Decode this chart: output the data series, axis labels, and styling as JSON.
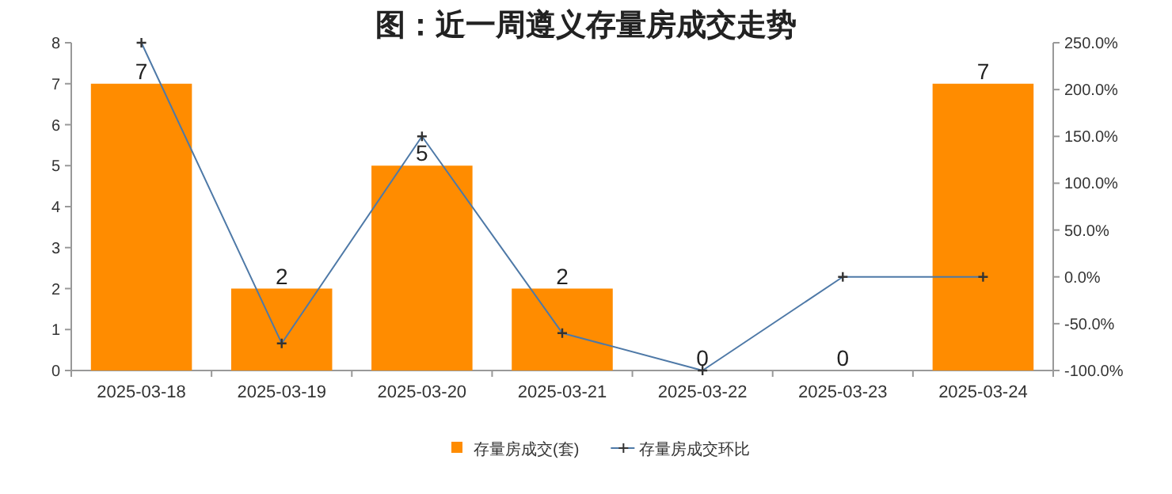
{
  "chart_data": {
    "type": "bar",
    "title": "图：近一周遵义存量房成交走势",
    "categories": [
      "2025-03-18",
      "2025-03-19",
      "2025-03-20",
      "2025-03-21",
      "2025-03-22",
      "2025-03-23",
      "2025-03-24"
    ],
    "series": [
      {
        "name": "存量房成交(套)",
        "color": "#ff8c00",
        "values": [
          7,
          2,
          5,
          2,
          0,
          0,
          7
        ],
        "value_labels": [
          "7",
          "2",
          "5",
          "2",
          "0",
          "0",
          "7"
        ]
      },
      {
        "name": "存量房成交环比",
        "type": "line",
        "axis": "y2",
        "color": "#4e79a7",
        "values": [
          250,
          -71,
          150,
          -60,
          -100,
          0,
          0
        ]
      }
    ],
    "ylim": [
      0,
      8
    ],
    "yticks": [
      0,
      1,
      2,
      3,
      4,
      5,
      6,
      7,
      8
    ],
    "y2lim": [
      -100,
      250
    ],
    "y2ticks": [
      {
        "value": -100,
        "label": "-100.0%"
      },
      {
        "value": -50,
        "label": "-50.0%"
      },
      {
        "value": 0,
        "label": "0.0%"
      },
      {
        "value": 50,
        "label": "50.0%"
      },
      {
        "value": 100,
        "label": "100.0%"
      },
      {
        "value": 150,
        "label": "150.0%"
      },
      {
        "value": 200,
        "label": "200.0%"
      },
      {
        "value": 250,
        "label": "250.0%"
      }
    ],
    "marker": "cross",
    "legend": "bottom"
  }
}
